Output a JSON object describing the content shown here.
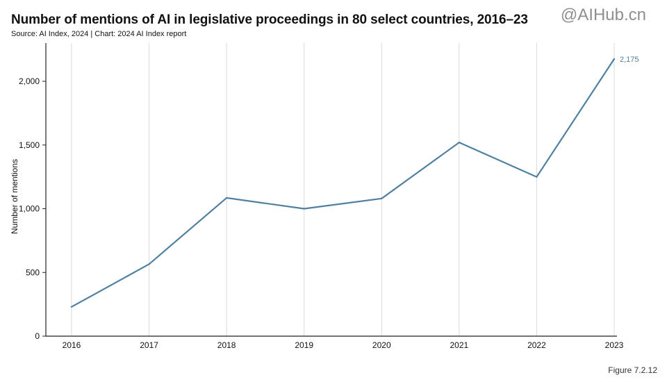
{
  "watermark": "@AIHub.cn",
  "figure_label": "Figure 7.2.12",
  "colors": {
    "line": "#5080a0",
    "grid": "#d9d9d9",
    "axis": "#222222"
  },
  "chart_data": {
    "type": "line",
    "title": "Number of mentions of AI in legislative proceedings in 80 select countries, 2016–23",
    "subtitle": "Source: AI Index, 2024 | Chart: 2024 AI Index report",
    "xlabel": "",
    "ylabel": "Number of mentions",
    "categories": [
      "2016",
      "2017",
      "2018",
      "2019",
      "2020",
      "2021",
      "2022",
      "2023"
    ],
    "series": [
      {
        "name": "Mentions",
        "values": [
          230,
          565,
          1085,
          1000,
          1080,
          1520,
          1250,
          2175
        ]
      }
    ],
    "ylim": [
      0,
      2300
    ],
    "yticks": [
      0,
      500,
      1000,
      1500,
      2000
    ],
    "ytick_labels": [
      "0",
      "500",
      "1,000",
      "1,500",
      "2,000"
    ],
    "grid": "vertical",
    "annotations": [
      {
        "category": "2023",
        "text": "2,175"
      }
    ]
  }
}
